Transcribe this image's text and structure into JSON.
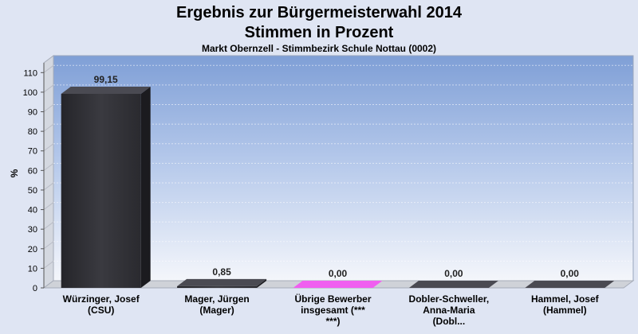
{
  "chart_data": {
    "type": "bar",
    "title": "Ergebnis zur Bürgermeisterwahl 2014",
    "title_line2": "Stimmen in Prozent",
    "subtitle": "Markt Obernzell - Stimmbezirk Schule Nottau (0002)",
    "ylabel": "%",
    "xlabel": "",
    "ylim": [
      0,
      115
    ],
    "yticks": [
      0,
      10,
      20,
      30,
      40,
      50,
      60,
      70,
      80,
      90,
      100,
      110
    ],
    "grid": true,
    "categories": [
      [
        "Würzinger, Josef",
        "(CSU)"
      ],
      [
        "Mager, Jürgen",
        "(Mager)"
      ],
      [
        "Übrige Bewerber",
        "insgesamt (***",
        "***)"
      ],
      [
        "Dobler-Schweller,",
        "Anna-Maria",
        "(Dobl..."
      ],
      [
        "Hammel, Josef",
        "(Hammel)"
      ]
    ],
    "values": [
      99.15,
      0.85,
      0.0,
      0.0,
      0.0
    ],
    "value_labels": [
      "99,15",
      "0,85",
      "0,00",
      "0,00",
      "0,00"
    ],
    "colors": [
      "#2e2e33",
      "#2e2e33",
      "#e93be8",
      "#2e2e33",
      "#2e2e33"
    ]
  }
}
